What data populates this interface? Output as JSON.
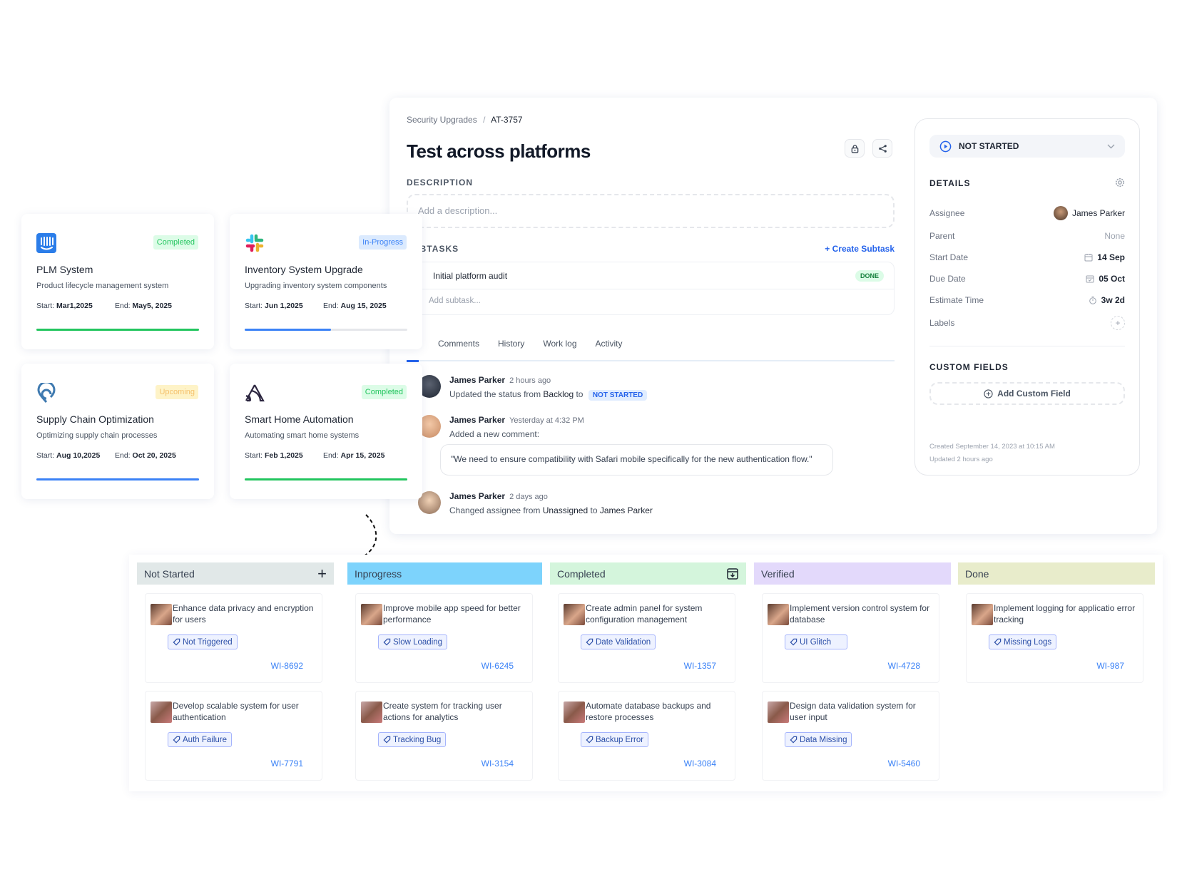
{
  "detail": {
    "breadcrumb": {
      "project": "Security Upgrades",
      "separator": "/",
      "issue": "AT-3757"
    },
    "title": "Test across platforms",
    "description_label": "DESCRIPTION",
    "description_placeholder": "Add a description...",
    "subtasks_label": "SUBTASKS",
    "create_subtask": "+ Create Subtask",
    "subtasks": [
      {
        "name": "Initial platform audit",
        "status": "DONE"
      }
    ],
    "add_subtask_placeholder": "Add subtask...",
    "tabs": [
      "Comments",
      "History",
      "Work log",
      "Activity"
    ],
    "activity": [
      {
        "user": "James Parker",
        "time": "2 hours ago",
        "text": "Updated the status from",
        "from": "Backlog",
        "to_word": "to",
        "badge": "NOT STARTED"
      },
      {
        "user": "James Parker",
        "time": "Yesterday at 4:32 PM",
        "text": "Added a new comment:",
        "comment": "\"We need to ensure compatibility with Safari mobile specifically for the new authentication flow.\""
      },
      {
        "user": "James Parker",
        "time": "2 days ago",
        "text": "Changed assignee from",
        "from": "Unassigned",
        "to_word": "to",
        "to": "James Parker"
      }
    ]
  },
  "side": {
    "status": "NOT STARTED",
    "details_label": "DETAILS",
    "rows": [
      {
        "label": "Assignee",
        "value": "James Parker"
      },
      {
        "label": "Parent",
        "value": "None"
      },
      {
        "label": "Start Date",
        "value": "14 Sep"
      },
      {
        "label": "Due Date",
        "value": "05 Oct"
      },
      {
        "label": "Estimate Time",
        "value": "3w 2d"
      },
      {
        "label": "Labels",
        "value": "+"
      }
    ],
    "custom_fields_label": "CUSTOM FIELDS",
    "add_custom_field": "Add Custom Field",
    "created": "Created September 14, 2023 at 10:15 AM",
    "updated": "Updated 2 hours ago"
  },
  "projects": [
    {
      "title": "PLM System",
      "desc": "Product lifecycle management system",
      "status": "Completed",
      "start_label": "Start:",
      "start": "Mar1,2025",
      "end_label": "End:",
      "end": "May5, 2025",
      "progress": 100,
      "icon": "intercom-icon"
    },
    {
      "title": "Inventory System Upgrade",
      "desc": "Upgrading inventory system components",
      "status": "In-Progress",
      "start_label": "Start:",
      "start": "Jun 1,2025",
      "end_label": "End:",
      "end": "Aug 15, 2025",
      "progress": 53,
      "icon": "slack-icon"
    },
    {
      "title": "Supply Chain Optimization",
      "desc": "Optimizing supply chain processes",
      "status": "Upcoming",
      "start_label": "Start:",
      "start": "Aug 10,2025",
      "end_label": "End:",
      "end": "Oct 20, 2025",
      "progress": 100,
      "icon": "pin-icon"
    },
    {
      "title": "Smart Home Automation",
      "desc": "Automating smart home systems",
      "status": "Completed",
      "start_label": "Start:",
      "start": "Feb 1,2025",
      "end_label": "End:",
      "end": "Apr 15, 2025",
      "progress": 100,
      "icon": "sentry-icon"
    }
  ],
  "colors": {
    "completed": "#22c55e",
    "inprogress": "#3b82f6",
    "upcoming": "#f5c16c",
    "accent": "#2563eb"
  },
  "kanban": [
    {
      "name": "Not Started",
      "color": "#e1e8e8",
      "action": "+",
      "cards": [
        {
          "title": "Enhance data privacy and encryption for users",
          "tag": "Not Triggered",
          "id": "WI-8692",
          "avatar": "female"
        },
        {
          "title": "Develop scalable system for user authentication",
          "tag": "Auth Failure",
          "id": "WI-7791",
          "avatar": "male"
        }
      ]
    },
    {
      "name": "Inprogress",
      "color": "#7dd3fc",
      "cards": [
        {
          "title": "Improve mobile app speed for better performance",
          "tag": "Slow Loading",
          "id": "WI-6245",
          "avatar": "female"
        },
        {
          "title": "Create system for tracking user actions for analytics",
          "tag": "Tracking Bug",
          "id": "WI-3154",
          "avatar": "male"
        }
      ]
    },
    {
      "name": "Completed",
      "color": "#d4f5dc",
      "action": "archive",
      "cards": [
        {
          "title": "Create admin panel for system configuration management",
          "tag": "Date Validation",
          "id": "WI-1357",
          "avatar": "female"
        },
        {
          "title": "Automate database backups and restore processes",
          "tag": "Backup Error",
          "id": "WI-3084",
          "avatar": "male"
        }
      ]
    },
    {
      "name": "Verified",
      "color": "#e3d9fb",
      "cards": [
        {
          "title": "Implement version control system for database",
          "tag": "UI Glitch",
          "id": "WI-4728",
          "avatar": "female"
        },
        {
          "title": "Design data validation system for user input",
          "tag": "Data Missing",
          "id": "WI-5460",
          "avatar": "male"
        }
      ]
    },
    {
      "name": "Done",
      "color": "#e8eccb",
      "cards": [
        {
          "title": "Implement logging for applicatio error tracking",
          "tag": "Missing Logs",
          "id": "WI-987",
          "avatar": "female"
        }
      ]
    }
  ]
}
